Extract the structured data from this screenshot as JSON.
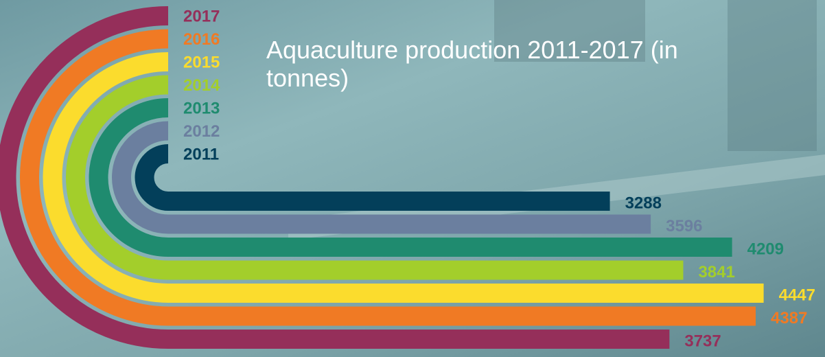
{
  "chart_data": {
    "type": "bar",
    "title": "Aquaculture production 2011-2017 (in tonnes)",
    "categories": [
      "2011",
      "2012",
      "2013",
      "2014",
      "2015",
      "2016",
      "2017"
    ],
    "values": [
      3288,
      3596,
      4209,
      3841,
      4447,
      4387,
      3737
    ],
    "colors": [
      "#033f5a",
      "#6b7f9f",
      "#1f8b6f",
      "#a3ce2b",
      "#fbdc2d",
      "#f07a24",
      "#952f5a"
    ]
  }
}
